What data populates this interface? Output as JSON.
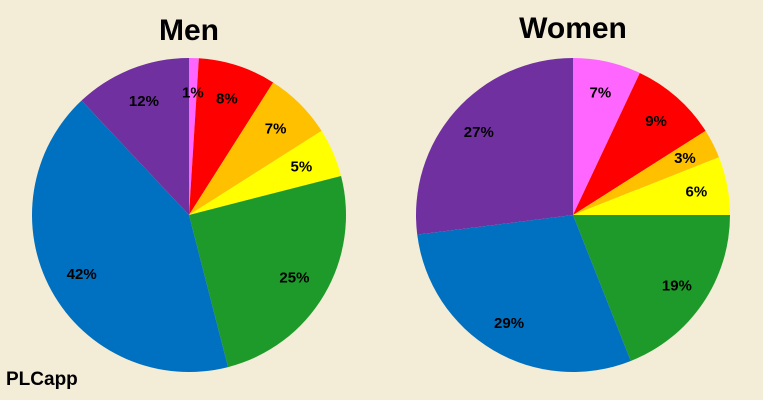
{
  "chart_data": [
    {
      "type": "pie",
      "title": "Men",
      "slices": [
        {
          "label": "1%",
          "value": 1,
          "color": "#ff66ff"
        },
        {
          "label": "8%",
          "value": 8,
          "color": "#ff0000"
        },
        {
          "label": "7%",
          "value": 7,
          "color": "#ffc000"
        },
        {
          "label": "5%",
          "value": 5,
          "color": "#ffff00"
        },
        {
          "label": "25%",
          "value": 25,
          "color": "#1e9a2a"
        },
        {
          "label": "42%",
          "value": 42,
          "color": "#0070c0"
        },
        {
          "label": "12%",
          "value": 12,
          "color": "#7030a0"
        }
      ]
    },
    {
      "type": "pie",
      "title": "Women",
      "slices": [
        {
          "label": "7%",
          "value": 7,
          "color": "#ff66ff"
        },
        {
          "label": "9%",
          "value": 9,
          "color": "#ff0000"
        },
        {
          "label": "3%",
          "value": 3,
          "color": "#ffc000"
        },
        {
          "label": "6%",
          "value": 6,
          "color": "#ffff00"
        },
        {
          "label": "19%",
          "value": 19,
          "color": "#1e9a2a"
        },
        {
          "label": "29%",
          "value": 29,
          "color": "#0070c0"
        },
        {
          "label": "27%",
          "value": 27,
          "color": "#7030a0"
        }
      ]
    }
  ],
  "brand": "PLCapp"
}
